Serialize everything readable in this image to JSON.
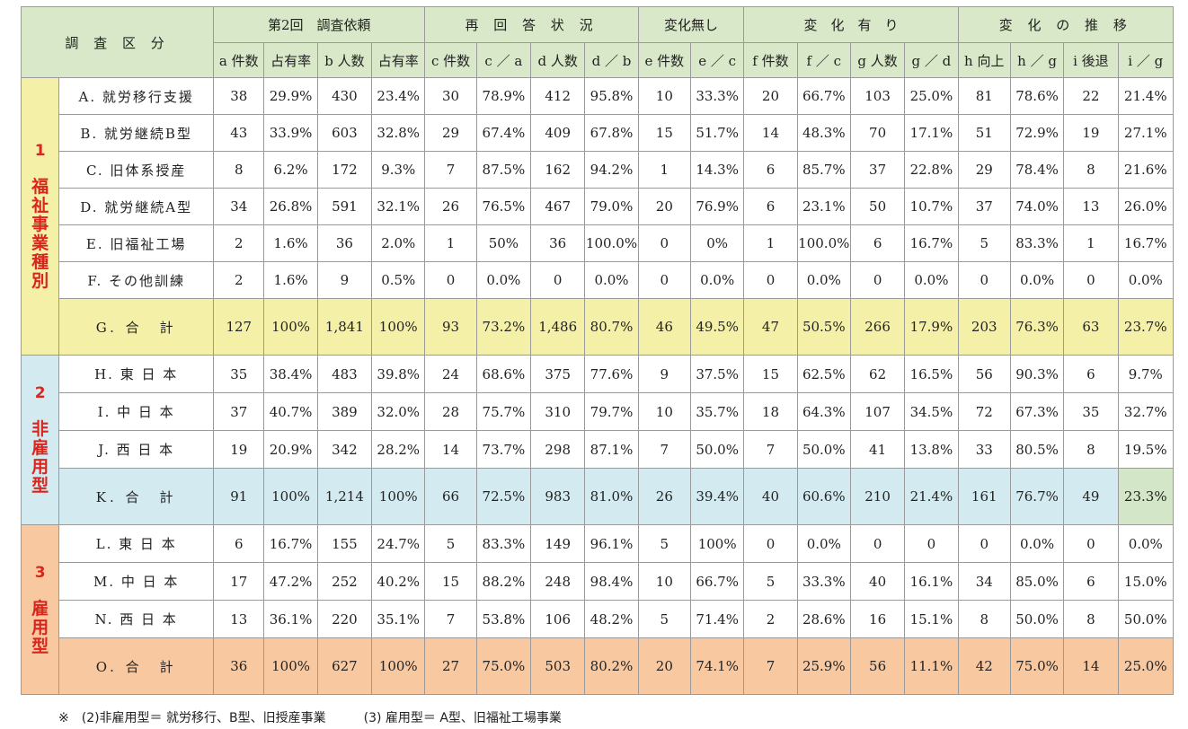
{
  "header_labels": {
    "category": "調 査 区 分",
    "g1": "第2回　調査依頼",
    "g2": "再 回 答 状 況",
    "g3": "変化無し",
    "g4": "変　化　有　り",
    "g5": "変 化 の 推 移",
    "sub": [
      "a 件数",
      "占有率",
      "b 人数",
      "占有率",
      "c 件数",
      "c ／ a",
      "d 人数",
      "d ／ b",
      "e 件数",
      "e ／ c",
      "f 件数",
      "f ／ c",
      "g 人数",
      "g ／ d",
      "h 向上",
      "h ／ g",
      "i 後退",
      "i ／ g"
    ]
  },
  "groups": [
    {
      "num": "1",
      "label_chars": [
        "福",
        "祉",
        "事",
        "業",
        "種",
        "別"
      ],
      "rows": [
        {
          "label": "A. 就労移行支援",
          "values": [
            "38",
            "29.9%",
            "430",
            "23.4%",
            "30",
            "78.9%",
            "412",
            "95.8%",
            "10",
            "33.3%",
            "20",
            "66.7%",
            "103",
            "25.0%",
            "81",
            "78.6%",
            "22",
            "21.4%"
          ]
        },
        {
          "label": "B. 就労継続B型",
          "values": [
            "43",
            "33.9%",
            "603",
            "32.8%",
            "29",
            "67.4%",
            "409",
            "67.8%",
            "15",
            "51.7%",
            "14",
            "48.3%",
            "70",
            "17.1%",
            "51",
            "72.9%",
            "19",
            "27.1%"
          ]
        },
        {
          "label": "C. 旧体系授産",
          "values": [
            "8",
            "6.2%",
            "172",
            "9.3%",
            "7",
            "87.5%",
            "162",
            "94.2%",
            "1",
            "14.3%",
            "6",
            "85.7%",
            "37",
            "22.8%",
            "29",
            "78.4%",
            "8",
            "21.6%"
          ]
        },
        {
          "label": "D. 就労継続A型",
          "values": [
            "34",
            "26.8%",
            "591",
            "32.1%",
            "26",
            "76.5%",
            "467",
            "79.0%",
            "20",
            "76.9%",
            "6",
            "23.1%",
            "50",
            "10.7%",
            "37",
            "74.0%",
            "13",
            "26.0%"
          ]
        },
        {
          "label": "E. 旧福祉工場",
          "values": [
            "2",
            "1.6%",
            "36",
            "2.0%",
            "1",
            "50%",
            "36",
            "100.0%",
            "0",
            "0%",
            "1",
            "100.0%",
            "6",
            "16.7%",
            "5",
            "83.3%",
            "1",
            "16.7%"
          ]
        },
        {
          "label": "F. その他訓練",
          "values": [
            "2",
            "1.6%",
            "9",
            "0.5%",
            "0",
            "0.0%",
            "0",
            "0.0%",
            "0",
            "0.0%",
            "0",
            "0.0%",
            "0",
            "0.0%",
            "0",
            "0.0%",
            "0",
            "0.0%"
          ]
        }
      ],
      "total": {
        "label": "G. 合　計",
        "values": [
          "127",
          "100%",
          "1,841",
          "100%",
          "93",
          "73.2%",
          "1,486",
          "80.7%",
          "46",
          "49.5%",
          "47",
          "50.5%",
          "266",
          "17.9%",
          "203",
          "76.3%",
          "63",
          "23.7%"
        ]
      },
      "colors": {
        "cat_bg": "#f4f0a8",
        "cat_text": "#d8261e",
        "total_bg": "#f4f0a8"
      }
    },
    {
      "num": "2",
      "label_chars": [
        "非",
        "雇",
        "用",
        "型"
      ],
      "rows": [
        {
          "label": "H. 東 日 本",
          "values": [
            "35",
            "38.4%",
            "483",
            "39.8%",
            "24",
            "68.6%",
            "375",
            "77.6%",
            "9",
            "37.5%",
            "15",
            "62.5%",
            "62",
            "16.5%",
            "56",
            "90.3%",
            "6",
            "9.7%"
          ]
        },
        {
          "label": "I. 中 日 本",
          "values": [
            "37",
            "40.7%",
            "389",
            "32.0%",
            "28",
            "75.7%",
            "310",
            "79.7%",
            "10",
            "35.7%",
            "18",
            "64.3%",
            "107",
            "34.5%",
            "72",
            "67.3%",
            "35",
            "32.7%"
          ]
        },
        {
          "label": "J. 西 日 本",
          "values": [
            "19",
            "20.9%",
            "342",
            "28.2%",
            "14",
            "73.7%",
            "298",
            "87.1%",
            "7",
            "50.0%",
            "7",
            "50.0%",
            "41",
            "13.8%",
            "33",
            "80.5%",
            "8",
            "19.5%"
          ]
        }
      ],
      "total": {
        "label": "K. 合　計",
        "values": [
          "91",
          "100%",
          "1,214",
          "100%",
          "66",
          "72.5%",
          "983",
          "81.0%",
          "26",
          "39.4%",
          "40",
          "60.6%",
          "210",
          "21.4%",
          "161",
          "76.7%",
          "49",
          "23.3%"
        ]
      },
      "colors": {
        "cat_bg": "#d3ebf0",
        "cat_text": "#d8261e",
        "total_bg": "#d3ebf0",
        "highlight_bg": "#d3e6c8"
      }
    },
    {
      "num": "3",
      "label_chars": [
        "雇",
        "用",
        "型"
      ],
      "rows": [
        {
          "label": "L. 東 日 本",
          "values": [
            "6",
            "16.7%",
            "155",
            "24.7%",
            "5",
            "83.3%",
            "149",
            "96.1%",
            "5",
            "100%",
            "0",
            "0.0%",
            "0",
            "0",
            "0",
            "0.0%",
            "0",
            "0.0%"
          ]
        },
        {
          "label": "M. 中 日 本",
          "values": [
            "17",
            "47.2%",
            "252",
            "40.2%",
            "15",
            "88.2%",
            "248",
            "98.4%",
            "10",
            "66.7%",
            "5",
            "33.3%",
            "40",
            "16.1%",
            "34",
            "85.0%",
            "6",
            "15.0%"
          ]
        },
        {
          "label": "N. 西 日 本",
          "values": [
            "13",
            "36.1%",
            "220",
            "35.1%",
            "7",
            "53.8%",
            "106",
            "48.2%",
            "5",
            "71.4%",
            "2",
            "28.6%",
            "16",
            "15.1%",
            "8",
            "50.0%",
            "8",
            "50.0%"
          ]
        }
      ],
      "total": {
        "label": "O. 合　計",
        "values": [
          "36",
          "100%",
          "627",
          "100%",
          "27",
          "75.0%",
          "503",
          "80.2%",
          "20",
          "74.1%",
          "7",
          "25.9%",
          "56",
          "11.1%",
          "42",
          "75.0%",
          "14",
          "25.0%"
        ]
      },
      "colors": {
        "cat_bg": "#f8c8a0",
        "cat_text": "#d8261e",
        "total_bg": "#f8c8a0"
      }
    }
  ],
  "footnote": "※　(2)非雇用型＝ 就労移行、B型、旧授産事業　　　(3) 雇用型＝ A型、旧福祉工場事業",
  "colors": {
    "header_bg": "#d8e8c8",
    "border": "#9a9a9a"
  }
}
